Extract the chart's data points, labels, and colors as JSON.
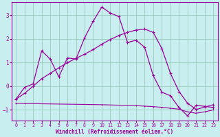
{
  "xlabel": "Windchill (Refroidissement éolien,°C)",
  "background_color": "#c8eef0",
  "grid_color": "#99ccbb",
  "line_color": "#990099",
  "xlim": [
    -0.5,
    23.5
  ],
  "ylim": [
    -1.45,
    3.55
  ],
  "yticks": [
    -1,
    0,
    1,
    2,
    3
  ],
  "xticks": [
    0,
    1,
    2,
    3,
    4,
    5,
    6,
    7,
    8,
    9,
    10,
    11,
    12,
    13,
    14,
    15,
    16,
    17,
    18,
    19,
    20,
    21,
    22,
    23
  ],
  "series1_x": [
    0,
    1,
    2,
    3,
    4,
    5,
    6,
    7,
    8,
    9,
    10,
    11,
    12,
    13,
    14,
    15,
    16,
    17,
    18,
    19,
    20,
    21,
    22,
    23
  ],
  "series1_y": [
    -0.55,
    -0.05,
    0.1,
    1.5,
    1.15,
    0.4,
    1.2,
    1.15,
    2.05,
    2.75,
    3.35,
    3.1,
    2.95,
    1.85,
    1.95,
    1.65,
    0.45,
    -0.25,
    -0.4,
    -0.9,
    -1.25,
    -0.8,
    -0.85,
    -0.9
  ],
  "series2_x": [
    0,
    1,
    10,
    14,
    15,
    16,
    17,
    18,
    19,
    20,
    21,
    22,
    23
  ],
  "series2_y": [
    -0.72,
    -0.73,
    -0.78,
    -0.82,
    -0.84,
    -0.86,
    -0.89,
    -0.93,
    -0.97,
    -1.08,
    -1.14,
    -1.08,
    -1.0
  ],
  "series3_x": [
    0,
    1,
    2,
    3,
    4,
    5,
    6,
    7,
    8,
    9,
    10,
    11,
    12,
    13,
    14,
    15,
    16,
    17,
    18,
    19,
    20,
    21,
    22,
    23
  ],
  "series3_y": [
    -0.55,
    -0.3,
    0.0,
    0.32,
    0.55,
    0.78,
    1.0,
    1.18,
    1.36,
    1.55,
    1.78,
    1.98,
    2.15,
    2.28,
    2.38,
    2.42,
    2.28,
    1.6,
    0.55,
    -0.22,
    -0.72,
    -0.98,
    -0.88,
    -0.78
  ]
}
